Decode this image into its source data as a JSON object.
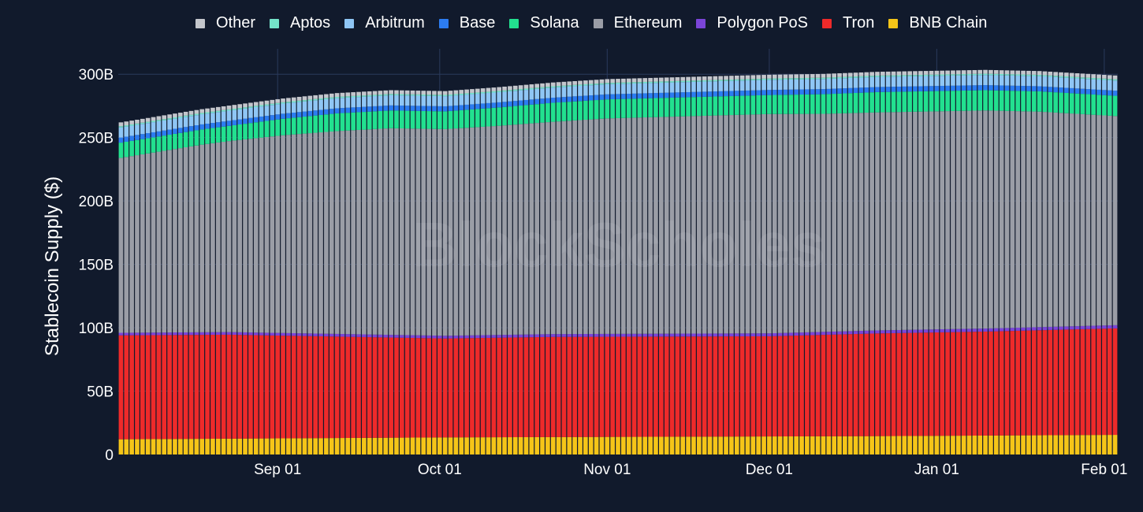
{
  "chart_data": {
    "type": "bar",
    "stacked": true,
    "title": "",
    "xlabel": "",
    "ylabel": "Stablecoin Supply ($)",
    "ylim": [
      0,
      320
    ],
    "y_unit": "B",
    "y_ticks": [
      0,
      50,
      100,
      150,
      200,
      250,
      300
    ],
    "y_tick_labels": [
      "0",
      "50B",
      "100B",
      "150B",
      "200B",
      "250B",
      "300B"
    ],
    "x_start": "Aug 03",
    "x_ticks": [
      {
        "label": "Sep 01",
        "day_index": 29
      },
      {
        "label": "Oct 01",
        "day_index": 59
      },
      {
        "label": "Nov 01",
        "day_index": 90
      },
      {
        "label": "Dec 01",
        "day_index": 120
      },
      {
        "label": "Jan 01",
        "day_index": 151
      },
      {
        "label": "Feb 01",
        "day_index": 182
      }
    ],
    "watermark": "BlockScholes",
    "legend_order": [
      "Other",
      "Aptos",
      "Arbitrum",
      "Base",
      "Solana",
      "Ethereum",
      "Polygon PoS",
      "Tron",
      "BNB Chain"
    ],
    "legend_placement": "top",
    "series_colors": {
      "BNB Chain": "#f5c518",
      "Tron": "#ee2a2a",
      "Polygon PoS": "#7b45d8",
      "Ethereum": "#9a9da6",
      "Solana": "#22e08f",
      "Base": "#2c7cf0",
      "Arbitrum": "#8fc6f5",
      "Aptos": "#74e3c9",
      "Other": "#c4c6cc"
    },
    "n_days": 185,
    "series_keypoints": {
      "BNB Chain": [
        [
          0,
          12
        ],
        [
          60,
          13.5
        ],
        [
          100,
          14
        ],
        [
          140,
          14.5
        ],
        [
          184,
          15.5
        ]
      ],
      "Tron": [
        [
          0,
          82
        ],
        [
          20,
          82
        ],
        [
          40,
          80
        ],
        [
          60,
          78
        ],
        [
          80,
          79
        ],
        [
          120,
          79
        ],
        [
          140,
          81
        ],
        [
          160,
          82
        ],
        [
          184,
          84
        ]
      ],
      "Polygon PoS": [
        [
          0,
          2
        ],
        [
          184,
          2.5
        ]
      ],
      "Ethereum": [
        [
          0,
          138
        ],
        [
          15,
          148
        ],
        [
          30,
          156
        ],
        [
          40,
          160
        ],
        [
          50,
          163
        ],
        [
          60,
          163
        ],
        [
          70,
          165
        ],
        [
          90,
          170
        ],
        [
          110,
          172
        ],
        [
          120,
          173
        ],
        [
          130,
          172
        ],
        [
          150,
          172
        ],
        [
          160,
          172
        ],
        [
          170,
          170
        ],
        [
          184,
          165
        ]
      ],
      "Solana": [
        [
          0,
          12
        ],
        [
          20,
          12
        ],
        [
          40,
          14
        ],
        [
          60,
          14
        ],
        [
          80,
          15
        ],
        [
          100,
          15
        ],
        [
          120,
          15
        ],
        [
          140,
          16
        ],
        [
          160,
          16
        ],
        [
          184,
          16
        ]
      ],
      "Base": [
        [
          0,
          4
        ],
        [
          60,
          4
        ],
        [
          100,
          4
        ],
        [
          150,
          4
        ],
        [
          184,
          4
        ]
      ],
      "Arbitrum": [
        [
          0,
          8
        ],
        [
          60,
          8
        ],
        [
          100,
          8
        ],
        [
          150,
          8
        ],
        [
          184,
          8
        ]
      ],
      "Aptos": [
        [
          0,
          1
        ],
        [
          184,
          1
        ]
      ],
      "Other": [
        [
          0,
          3
        ],
        [
          60,
          3
        ],
        [
          100,
          3
        ],
        [
          150,
          3
        ],
        [
          184,
          3
        ]
      ]
    },
    "total_supply_keypoints": [
      [
        0,
        264
      ],
      [
        10,
        272
      ],
      [
        20,
        279
      ],
      [
        30,
        282
      ],
      [
        40,
        286
      ],
      [
        50,
        290
      ],
      [
        56,
        288
      ],
      [
        60,
        292
      ],
      [
        70,
        297
      ],
      [
        80,
        299
      ],
      [
        90,
        300
      ],
      [
        100,
        301
      ],
      [
        110,
        300
      ],
      [
        120,
        303
      ],
      [
        130,
        305
      ],
      [
        140,
        306
      ],
      [
        150,
        304
      ],
      [
        160,
        304
      ],
      [
        170,
        305
      ],
      [
        175,
        305
      ],
      [
        184,
        302
      ]
    ]
  }
}
